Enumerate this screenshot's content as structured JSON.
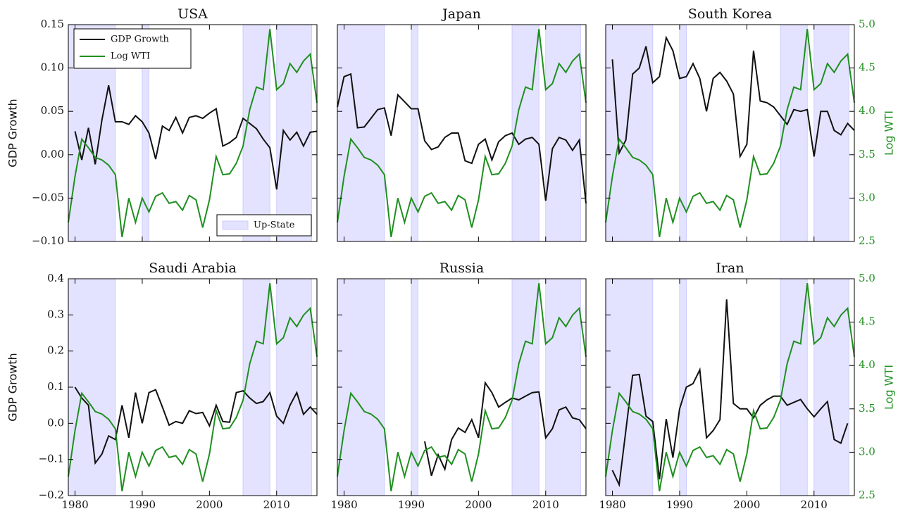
{
  "chart_data": [
    {
      "type": "line",
      "title": "USA",
      "ylabel": "GDP Growth",
      "legend": "upper left",
      "x": [
        1979,
        1980,
        1981,
        1982,
        1983,
        1984,
        1985,
        1986,
        1987,
        1988,
        1989,
        1990,
        1991,
        1992,
        1993,
        1994,
        1995,
        1996,
        1997,
        1998,
        1999,
        2000,
        2001,
        2002,
        2003,
        2004,
        2005,
        2006,
        2007,
        2008,
        2009,
        2010,
        2011,
        2012,
        2013,
        2014,
        2015,
        2016
      ],
      "xlim": [
        1979,
        2016
      ],
      "xticks": [
        1980,
        1990,
        2000,
        2010
      ],
      "ylim": [
        -0.1,
        0.15
      ],
      "yticks": [
        {
          "value": -0.1,
          "label": "−0.10"
        },
        {
          "value": -0.05,
          "label": "−0.05"
        },
        {
          "value": 0,
          "label": "0.00"
        },
        {
          "value": 0.05,
          "label": "0.05"
        },
        {
          "value": 0.1,
          "label": "0.10"
        },
        {
          "value": 0.15,
          "label": "0.15"
        }
      ],
      "y2lim": [
        2.5,
        5.0
      ],
      "y2ticks": [
        2.5,
        3,
        3.5,
        4,
        4.5,
        5
      ],
      "shading": {
        "name": "Up-State",
        "legend": "lower right",
        "color": "#ccccff",
        "spans": [
          [
            1979,
            1986
          ],
          [
            1990,
            1991
          ],
          [
            2005,
            2009
          ],
          [
            2010,
            2015.2
          ]
        ]
      },
      "series": [
        {
          "name": "GDP Growth",
          "color": "#111111",
          "values": [
            null,
            0.027,
            -0.006,
            0.031,
            -0.011,
            0.04,
            0.08,
            0.038,
            0.038,
            0.035,
            0.045,
            0.038,
            0.025,
            -0.005,
            0.033,
            0.028,
            0.043,
            0.025,
            0.043,
            0.045,
            0.042,
            0.048,
            0.053,
            0.01,
            0.014,
            0.02,
            0.042,
            0.036,
            0.03,
            0.018,
            0.008,
            -0.04,
            0.028,
            0.017,
            0.026,
            0.01,
            0.026,
            0.027
          ]
        },
        {
          "name": "Log WTI",
          "color": "#1f8f1f",
          "axis": "y2",
          "values": [
            2.72,
            3.25,
            3.68,
            3.58,
            3.47,
            3.44,
            3.38,
            3.27,
            2.55,
            3.0,
            2.72,
            3.0,
            2.84,
            3.02,
            3.06,
            2.94,
            2.96,
            2.86,
            3.03,
            2.98,
            2.66,
            2.98,
            3.48,
            3.27,
            3.28,
            3.4,
            3.6,
            4.02,
            4.28,
            4.25,
            4.95,
            4.25,
            4.32,
            4.55,
            4.45,
            4.58,
            4.66,
            4.1
          ]
        }
      ]
    },
    {
      "type": "line",
      "title": "Japan",
      "x": [
        1979,
        1980,
        1981,
        1982,
        1983,
        1984,
        1985,
        1986,
        1987,
        1988,
        1989,
        1990,
        1991,
        1992,
        1993,
        1994,
        1995,
        1996,
        1997,
        1998,
        1999,
        2000,
        2001,
        2002,
        2003,
        2004,
        2005,
        2006,
        2007,
        2008,
        2009,
        2010,
        2011,
        2012,
        2013,
        2014,
        2015,
        2016
      ],
      "xlim": [
        1979,
        2016
      ],
      "xticks": [
        1980,
        1990,
        2000,
        2010
      ],
      "ylim": [
        -0.1,
        0.15
      ],
      "yticks": [
        -0.1,
        -0.05,
        0,
        0.05,
        0.1,
        0.15
      ],
      "y2lim": [
        2.5,
        5.0
      ],
      "y2ticks": [
        2.5,
        3,
        3.5,
        4,
        4.5,
        5
      ],
      "shading": {
        "color": "#ccccff",
        "spans": [
          [
            1979,
            1986
          ],
          [
            1990,
            1991
          ],
          [
            2005,
            2009
          ],
          [
            2010,
            2015.2
          ]
        ]
      },
      "series": [
        {
          "color": "#111111",
          "values": [
            0.055,
            0.09,
            0.093,
            0.031,
            0.032,
            0.042,
            0.052,
            0.054,
            0.022,
            0.069,
            0.061,
            0.053,
            0.053,
            0.016,
            0.006,
            0.009,
            0.02,
            0.025,
            0.025,
            -0.007,
            -0.01,
            0.012,
            0.018,
            -0.006,
            0.015,
            0.022,
            0.025,
            0.012,
            0.018,
            0.02,
            0.012,
            -0.053,
            0.007,
            0.02,
            0.017,
            0.005,
            0.017,
            -0.056
          ]
        },
        {
          "color": "#1f8f1f",
          "axis": "y2",
          "values": [
            2.72,
            3.25,
            3.68,
            3.58,
            3.47,
            3.44,
            3.38,
            3.27,
            2.55,
            3.0,
            2.72,
            3.0,
            2.84,
            3.02,
            3.06,
            2.94,
            2.96,
            2.86,
            3.03,
            2.98,
            2.66,
            2.98,
            3.48,
            3.27,
            3.28,
            3.4,
            3.6,
            4.02,
            4.28,
            4.25,
            4.95,
            4.25,
            4.32,
            4.55,
            4.45,
            4.58,
            4.66,
            4.1
          ]
        }
      ]
    },
    {
      "type": "line",
      "title": "South Korea",
      "y2label": "Log WTI",
      "x": [
        1979,
        1980,
        1981,
        1982,
        1983,
        1984,
        1985,
        1986,
        1987,
        1988,
        1989,
        1990,
        1991,
        1992,
        1993,
        1994,
        1995,
        1996,
        1997,
        1998,
        1999,
        2000,
        2001,
        2002,
        2003,
        2004,
        2005,
        2006,
        2007,
        2008,
        2009,
        2010,
        2011,
        2012,
        2013,
        2014,
        2015,
        2016
      ],
      "xlim": [
        1979,
        2016
      ],
      "xticks": [
        1980,
        1990,
        2000,
        2010
      ],
      "ylim": [
        -0.1,
        0.15
      ],
      "yticks": [
        -0.1,
        -0.05,
        0,
        0.05,
        0.1,
        0.15
      ],
      "y2lim": [
        2.5,
        5.0
      ],
      "y2ticks": [
        {
          "value": 2.5,
          "label": "2.5"
        },
        {
          "value": 3,
          "label": "3.0"
        },
        {
          "value": 3.5,
          "label": "3.5"
        },
        {
          "value": 4,
          "label": "4.0"
        },
        {
          "value": 4.5,
          "label": "4.5"
        },
        {
          "value": 5,
          "label": "5.0"
        }
      ],
      "shading": {
        "color": "#ccccff",
        "spans": [
          [
            1979,
            1986
          ],
          [
            1990,
            1991
          ],
          [
            2005,
            2009
          ],
          [
            2010,
            2015.2
          ]
        ]
      },
      "series": [
        {
          "color": "#111111",
          "values": [
            null,
            0.11,
            0.002,
            0.017,
            0.093,
            0.1,
            0.125,
            0.083,
            0.09,
            0.135,
            0.12,
            0.088,
            0.09,
            0.105,
            0.088,
            0.05,
            0.088,
            0.095,
            0.085,
            0.07,
            -0.002,
            0.012,
            0.12,
            0.062,
            0.06,
            0.055,
            0.045,
            0.035,
            0.052,
            0.05,
            0.052,
            -0.002,
            0.05,
            0.05,
            0.028,
            0.023,
            0.036,
            0.028
          ]
        },
        {
          "color": "#1f8f1f",
          "axis": "y2",
          "values": [
            2.72,
            3.25,
            3.68,
            3.58,
            3.47,
            3.44,
            3.38,
            3.27,
            2.55,
            3.0,
            2.72,
            3.0,
            2.84,
            3.02,
            3.06,
            2.94,
            2.96,
            2.86,
            3.03,
            2.98,
            2.66,
            2.98,
            3.48,
            3.27,
            3.28,
            3.4,
            3.6,
            4.02,
            4.28,
            4.25,
            4.95,
            4.25,
            4.32,
            4.55,
            4.45,
            4.58,
            4.66,
            4.1
          ]
        }
      ]
    },
    {
      "type": "line",
      "title": "Saudi Arabia",
      "ylabel": "GDP Growth",
      "x": [
        1979,
        1980,
        1981,
        1982,
        1983,
        1984,
        1985,
        1986,
        1987,
        1988,
        1989,
        1990,
        1991,
        1992,
        1993,
        1994,
        1995,
        1996,
        1997,
        1998,
        1999,
        2000,
        2001,
        2002,
        2003,
        2004,
        2005,
        2006,
        2007,
        2008,
        2009,
        2010,
        2011,
        2012,
        2013,
        2014,
        2015,
        2016
      ],
      "xlim": [
        1979,
        2016
      ],
      "xticks": [
        1980,
        1990,
        2000,
        2010
      ],
      "ylim": [
        -0.2,
        0.4
      ],
      "yticks": [
        {
          "value": -0.2,
          "label": "−0.2"
        },
        {
          "value": -0.1,
          "label": "−0.1"
        },
        {
          "value": 0,
          "label": "0.0"
        },
        {
          "value": 0.1,
          "label": "0.1"
        },
        {
          "value": 0.2,
          "label": "0.2"
        },
        {
          "value": 0.3,
          "label": "0.3"
        },
        {
          "value": 0.4,
          "label": "0.4"
        }
      ],
      "y2lim": [
        2.5,
        5.0
      ],
      "y2ticks": [
        2.5,
        3,
        3.5,
        4,
        4.5,
        5
      ],
      "shading": {
        "color": "#ccccff",
        "spans": [
          [
            1979,
            1986
          ],
          [
            2005,
            2009
          ],
          [
            2010,
            2015.2
          ]
        ]
      },
      "series": [
        {
          "color": "#111111",
          "values": [
            null,
            0.1,
            0.07,
            0.05,
            -0.11,
            -0.085,
            -0.035,
            -0.045,
            0.05,
            -0.04,
            0.085,
            0,
            0.085,
            0.093,
            0.045,
            -0.005,
            0.005,
            0,
            0.035,
            0.027,
            0.03,
            -0.007,
            0.05,
            0.005,
            0.003,
            0.085,
            0.09,
            0.07,
            0.055,
            0.06,
            0.085,
            0.02,
            0,
            0.05,
            0.085,
            0.025,
            0.045,
            0.025
          ]
        },
        {
          "color": "#1f8f1f",
          "axis": "y2",
          "values": [
            2.72,
            3.25,
            3.68,
            3.58,
            3.47,
            3.44,
            3.38,
            3.27,
            2.55,
            3.0,
            2.72,
            3.0,
            2.84,
            3.02,
            3.06,
            2.94,
            2.96,
            2.86,
            3.03,
            2.98,
            2.66,
            2.98,
            3.48,
            3.27,
            3.28,
            3.4,
            3.6,
            4.02,
            4.28,
            4.25,
            4.95,
            4.25,
            4.32,
            4.55,
            4.45,
            4.58,
            4.66,
            4.1
          ]
        }
      ]
    },
    {
      "type": "line",
      "title": "Russia",
      "x": [
        1979,
        1980,
        1981,
        1982,
        1983,
        1984,
        1985,
        1986,
        1987,
        1988,
        1989,
        1990,
        1991,
        1992,
        1993,
        1994,
        1995,
        1996,
        1997,
        1998,
        1999,
        2000,
        2001,
        2002,
        2003,
        2004,
        2005,
        2006,
        2007,
        2008,
        2009,
        2010,
        2011,
        2012,
        2013,
        2014,
        2015,
        2016
      ],
      "xlim": [
        1979,
        2016
      ],
      "xticks": [
        1980,
        1990,
        2000,
        2010
      ],
      "ylim": [
        -0.2,
        0.4
      ],
      "yticks": [
        -0.2,
        -0.1,
        0,
        0.1,
        0.2,
        0.3,
        0.4
      ],
      "y2lim": [
        2.5,
        5.0
      ],
      "y2ticks": [
        2.5,
        3,
        3.5,
        4,
        4.5,
        5
      ],
      "shading": {
        "color": "#ccccff",
        "spans": [
          [
            1979,
            1986
          ],
          [
            1990,
            1991
          ],
          [
            2005,
            2009
          ],
          [
            2010,
            2015.2
          ]
        ]
      },
      "series": [
        {
          "color": "#111111",
          "values": [
            null,
            null,
            null,
            null,
            null,
            null,
            null,
            null,
            null,
            null,
            null,
            null,
            null,
            -0.05,
            -0.145,
            -0.087,
            -0.127,
            -0.045,
            -0.013,
            -0.025,
            0.01,
            -0.04,
            0.112,
            0.085,
            0.045,
            0.058,
            0.07,
            0.065,
            0.075,
            0.085,
            0.087,
            -0.04,
            -0.015,
            0.037,
            0.045,
            0.015,
            0.01,
            -0.015
          ]
        },
        {
          "color": "#1f8f1f",
          "axis": "y2",
          "values": [
            2.72,
            3.25,
            3.68,
            3.58,
            3.47,
            3.44,
            3.38,
            3.27,
            2.55,
            3.0,
            2.72,
            3.0,
            2.84,
            3.02,
            3.06,
            2.94,
            2.96,
            2.86,
            3.03,
            2.98,
            2.66,
            2.98,
            3.48,
            3.27,
            3.28,
            3.4,
            3.6,
            4.02,
            4.28,
            4.25,
            4.95,
            4.25,
            4.32,
            4.55,
            4.45,
            4.58,
            4.66,
            4.1
          ]
        }
      ]
    },
    {
      "type": "line",
      "title": "Iran",
      "y2label": "Log WTI",
      "x": [
        1979,
        1980,
        1981,
        1982,
        1983,
        1984,
        1985,
        1986,
        1987,
        1988,
        1989,
        1990,
        1991,
        1992,
        1993,
        1994,
        1995,
        1996,
        1997,
        1998,
        1999,
        2000,
        2001,
        2002,
        2003,
        2004,
        2005,
        2006,
        2007,
        2008,
        2009,
        2010,
        2011,
        2012,
        2013,
        2014,
        2015,
        2016
      ],
      "xlim": [
        1979,
        2016
      ],
      "xticks": [
        1980,
        1990,
        2000,
        2010
      ],
      "ylim": [
        -0.2,
        0.4
      ],
      "yticks": [
        -0.2,
        -0.1,
        0,
        0.1,
        0.2,
        0.3,
        0.4
      ],
      "y2lim": [
        2.5,
        5.0
      ],
      "y2ticks": [
        {
          "value": 2.5,
          "label": "2.5"
        },
        {
          "value": 3,
          "label": "3.0"
        },
        {
          "value": 3.5,
          "label": "3.5"
        },
        {
          "value": 4,
          "label": "4.0"
        },
        {
          "value": 4.5,
          "label": "4.5"
        },
        {
          "value": 5,
          "label": "5.0"
        }
      ],
      "shading": {
        "color": "#ccccff",
        "spans": [
          [
            1979,
            1986
          ],
          [
            1990,
            1991
          ],
          [
            2005,
            2009
          ],
          [
            2010,
            2015.2
          ]
        ]
      },
      "series": [
        {
          "color": "#111111",
          "values": [
            null,
            -0.13,
            -0.17,
            -0.02,
            0.133,
            0.135,
            0.02,
            0.005,
            -0.155,
            0.012,
            -0.095,
            0.04,
            0.1,
            0.11,
            0.148,
            -0.04,
            -0.02,
            0.01,
            0.343,
            0.055,
            0.04,
            0.04,
            0.015,
            0.05,
            0.065,
            0.075,
            0.075,
            0.05,
            0.058,
            0.066,
            0.04,
            0.018,
            0.04,
            0.06,
            -0.045,
            -0.055,
            0,
            null
          ]
        },
        {
          "color": "#1f8f1f",
          "axis": "y2",
          "values": [
            2.72,
            3.25,
            3.68,
            3.58,
            3.47,
            3.44,
            3.38,
            3.27,
            2.55,
            3.0,
            2.72,
            3.0,
            2.84,
            3.02,
            3.06,
            2.94,
            2.96,
            2.86,
            3.03,
            2.98,
            2.66,
            2.98,
            3.48,
            3.27,
            3.28,
            3.4,
            3.6,
            4.02,
            4.28,
            4.25,
            4.95,
            4.25,
            4.32,
            4.55,
            4.45,
            4.58,
            4.66,
            4.1
          ]
        }
      ]
    }
  ]
}
